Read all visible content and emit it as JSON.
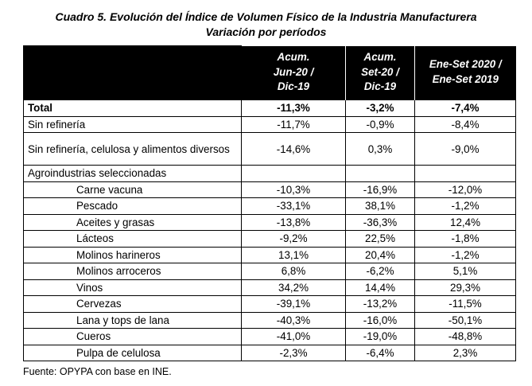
{
  "title_line1": "Cuadro 5. Evolución del Índice de Volumen Físico de la Industria Manufacturera",
  "title_line2": "Variación por períodos",
  "headers": {
    "col0": "",
    "col1": [
      "Acum.",
      "Jun-20 /",
      "Dic-19"
    ],
    "col2": [
      "Acum.",
      "Set-20 /",
      "Dic-19"
    ],
    "col3": [
      "Ene-Set 2020 /",
      "Ene-Set 2019"
    ]
  },
  "rows": [
    {
      "label": "Total",
      "v1": "-11,3%",
      "v2": "-3,2%",
      "v3": "-7,4%"
    },
    {
      "label": "Sin refinería",
      "v1": "-11,7%",
      "v2": "-0,9%",
      "v3": "-8,4%"
    },
    {
      "label": "Sin refinería, celulosa y alimentos diversos",
      "v1": "-14,6%",
      "v2": "0,3%",
      "v3": "-9,0%"
    },
    {
      "label": "Agroindustrias seleccionadas",
      "v1": "",
      "v2": "",
      "v3": ""
    },
    {
      "label": "Carne vacuna",
      "v1": "-10,3%",
      "v2": "-16,9%",
      "v3": "-12,0%"
    },
    {
      "label": "Pescado",
      "v1": "-33,1%",
      "v2": "38,1%",
      "v3": "-1,2%"
    },
    {
      "label": "Aceites y grasas",
      "v1": "-13,8%",
      "v2": "-36,3%",
      "v3": "12,4%"
    },
    {
      "label": "Lácteos",
      "v1": "-9,2%",
      "v2": "22,5%",
      "v3": "-1,8%"
    },
    {
      "label": "Molinos harineros",
      "v1": "13,1%",
      "v2": "20,4%",
      "v3": "-1,2%"
    },
    {
      "label": "Molinos arroceros",
      "v1": "6,8%",
      "v2": "-6,2%",
      "v3": "5,1%"
    },
    {
      "label": "Vinos",
      "v1": "34,2%",
      "v2": "14,4%",
      "v3": "29,3%"
    },
    {
      "label": "Cervezas",
      "v1": "-39,1%",
      "v2": "-13,2%",
      "v3": "-11,5%"
    },
    {
      "label": "Lana y tops de lana",
      "v1": "-40,3%",
      "v2": "-16,0%",
      "v3": "-50,1%"
    },
    {
      "label": "Cueros",
      "v1": "-41,0%",
      "v2": "-19,0%",
      "v3": "-48,8%"
    },
    {
      "label": "Pulpa de celulosa",
      "v1": "-2,3%",
      "v2": "-6,4%",
      "v3": "2,3%"
    }
  ],
  "source": "Fuente: OPYPA con base en INE."
}
